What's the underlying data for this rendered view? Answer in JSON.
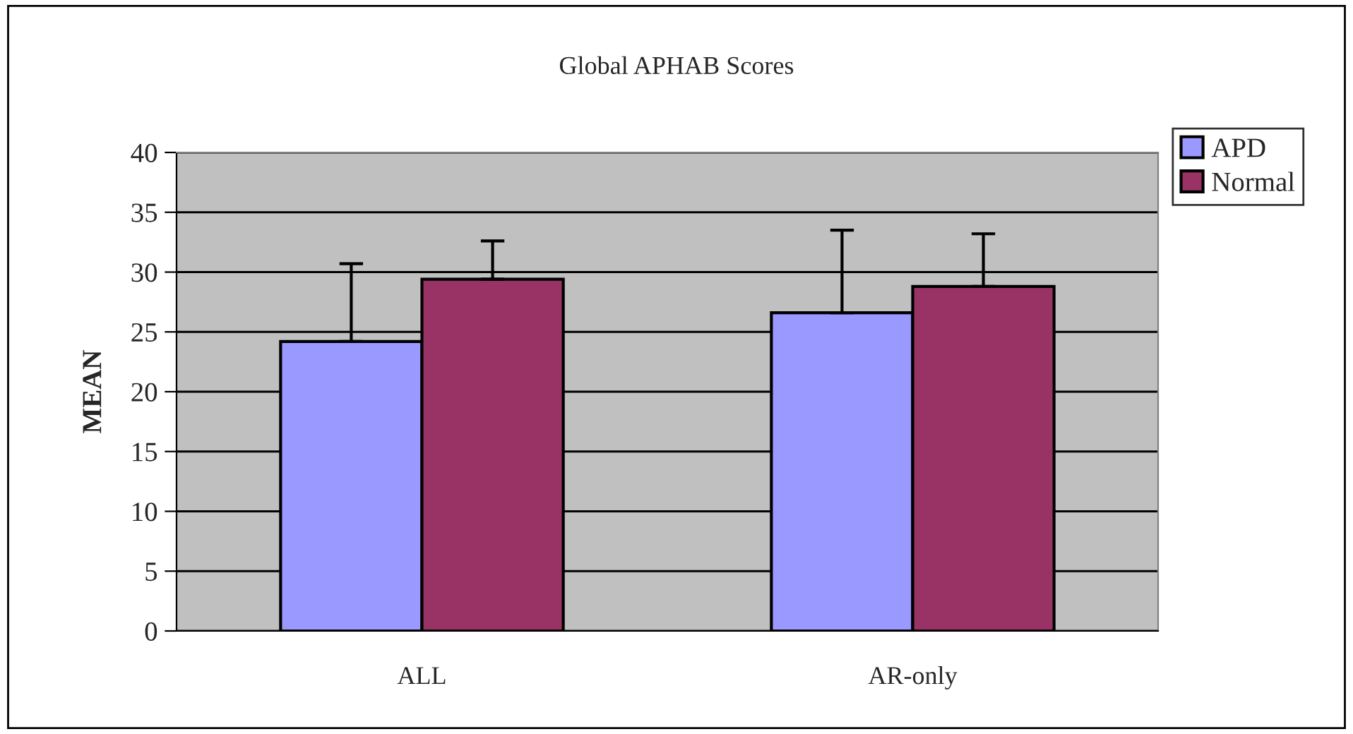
{
  "chart_data": {
    "type": "bar",
    "title": "Global APHAB Scores",
    "ylabel": "MEAN",
    "categories": [
      "ALL",
      "AR-only"
    ],
    "series": [
      {
        "name": "APD",
        "color": "#9999ff",
        "values": [
          24.2,
          26.6
        ],
        "errors": [
          [
            24.2,
            30.7
          ],
          [
            26.6,
            33.5
          ]
        ]
      },
      {
        "name": "Normal",
        "color": "#993366",
        "values": [
          29.4,
          28.8
        ],
        "errors": [
          [
            29.4,
            32.6
          ],
          [
            28.8,
            33.2
          ]
        ]
      }
    ],
    "ylim": [
      0,
      40
    ],
    "yticks": [
      0,
      5,
      10,
      15,
      20,
      25,
      30,
      35,
      40
    ],
    "grid": "y",
    "legend": "top right"
  }
}
